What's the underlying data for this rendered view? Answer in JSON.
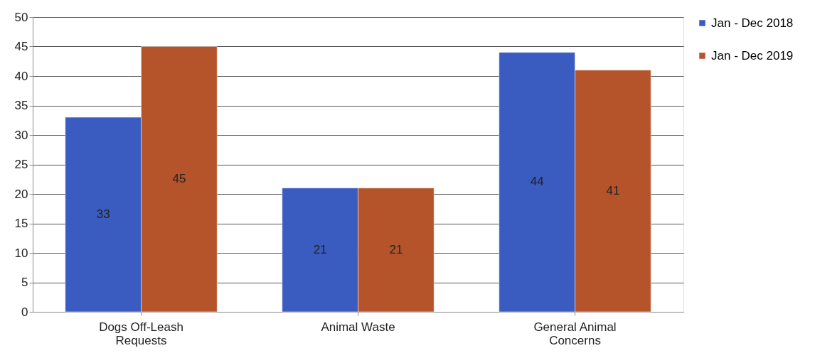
{
  "chart_data": {
    "type": "bar",
    "categories": [
      "Dogs Off-Leash Requests",
      "Animal Waste",
      "General Animal Concerns"
    ],
    "series": [
      {
        "name": "Jan - Dec 2018",
        "color": "#3a5bbf",
        "values": [
          33,
          21,
          44
        ]
      },
      {
        "name": "Jan - Dec 2019",
        "color": "#b5542b",
        "values": [
          45,
          21,
          41
        ]
      }
    ],
    "ylim": [
      0,
      50
    ],
    "yticks": [
      0,
      5,
      10,
      15,
      20,
      25,
      30,
      35,
      40,
      45,
      50
    ],
    "grid": "y",
    "legend": "right",
    "data_labels": true
  }
}
